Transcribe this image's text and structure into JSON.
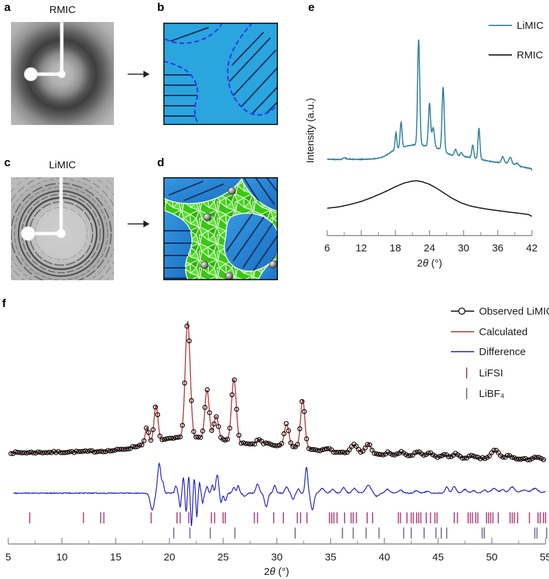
{
  "panels": {
    "a": {
      "label": "a",
      "title": "RMIC"
    },
    "b": {
      "label": "b"
    },
    "c": {
      "label": "c",
      "title": "LiMIC"
    },
    "d": {
      "label": "d"
    },
    "e": {
      "label": "e"
    },
    "f": {
      "label": "f"
    }
  },
  "colors": {
    "limic": "#2e80a0",
    "rmic": "#141414",
    "observed": "#000000",
    "calculated": "#b02828",
    "difference": "#1717bf",
    "lifsi": "#b04a80",
    "libf4": "#73739f",
    "axis": "#8c8c8c",
    "tick_label": "#1a1a1a",
    "panel_b_bg": "#2aa5de",
    "dashed_boundary": "#2d3bec",
    "hatch": "#15305e",
    "panel_d_blue": "#2484d4",
    "panel_d_green": "#3fd01a"
  },
  "chart_data": [
    {
      "id": "panel-e",
      "type": "line",
      "xlabel": "2θ (°)",
      "ylabel": "Intensity (a.u.)",
      "xlim": [
        6,
        42
      ],
      "xticks": [
        6,
        12,
        18,
        24,
        30,
        36,
        42
      ],
      "minor_ticks": [
        9,
        15,
        21,
        27,
        33,
        39
      ],
      "grid": false,
      "legend_position": "top-right",
      "series": [
        {
          "name": "LiMIC",
          "color_key": "limic",
          "legend_sample": "line",
          "baseline": [
            [
              6,
              0.018
            ],
            [
              8.5,
              0.016
            ],
            [
              9.0,
              0.032
            ],
            [
              9.5,
              0.02
            ],
            [
              11,
              0.016
            ],
            [
              13,
              0.018
            ],
            [
              14.5,
              0.022
            ],
            [
              15.5,
              0.032
            ],
            [
              16.5,
              0.052
            ],
            [
              17.2,
              0.075
            ],
            [
              18.0,
              0.1
            ],
            [
              19.0,
              0.115
            ],
            [
              20,
              0.125
            ],
            [
              21,
              0.135
            ],
            [
              22.5,
              0.135
            ],
            [
              23.5,
              0.125
            ],
            [
              25,
              0.11
            ],
            [
              26,
              0.1
            ],
            [
              27,
              0.07
            ],
            [
              27.8,
              0.052
            ],
            [
              29,
              0.045
            ],
            [
              30,
              0.04
            ],
            [
              31.5,
              0.03
            ],
            [
              33,
              0.018
            ],
            [
              34,
              0.006
            ],
            [
              35.5,
              -0.006
            ],
            [
              37,
              -0.012
            ],
            [
              38.5,
              -0.025
            ],
            [
              40,
              -0.042
            ],
            [
              41.5,
              -0.055
            ],
            [
              41.9,
              -0.06
            ],
            [
              42,
              -0.075
            ]
          ],
          "peaks": [
            [
              18.1,
              0.135,
              0.14
            ],
            [
              19.0,
              0.21,
              0.16
            ],
            [
              22.1,
              0.865,
              0.19
            ],
            [
              24.0,
              0.355,
              0.19
            ],
            [
              24.65,
              0.16,
              0.22
            ],
            [
              26.4,
              0.52,
              0.19
            ],
            [
              28.6,
              0.05,
              0.22
            ],
            [
              29.6,
              0.03,
              0.2
            ],
            [
              31.6,
              0.105,
              0.17
            ],
            [
              32.7,
              0.25,
              0.17
            ],
            [
              36.9,
              0.05,
              0.22
            ],
            [
              38.2,
              0.055,
              0.26
            ],
            [
              39.4,
              0.02,
              0.25
            ]
          ]
        },
        {
          "name": "RMIC",
          "color_key": "rmic",
          "legend_sample": "line",
          "baseline": [
            [
              6,
              0.095
            ],
            [
              8,
              0.105
            ],
            [
              10,
              0.125
            ],
            [
              12,
              0.15
            ],
            [
              14,
              0.185
            ],
            [
              16,
              0.225
            ],
            [
              18,
              0.27
            ],
            [
              19.5,
              0.3
            ],
            [
              20.8,
              0.315
            ],
            [
              21.7,
              0.32
            ],
            [
              22.8,
              0.31
            ],
            [
              24,
              0.29
            ],
            [
              25.2,
              0.26
            ],
            [
              26.5,
              0.22
            ],
            [
              28,
              0.175
            ],
            [
              29.5,
              0.14
            ],
            [
              31,
              0.115
            ],
            [
              32.5,
              0.1
            ],
            [
              34,
              0.088
            ],
            [
              36,
              0.075
            ],
            [
              38,
              0.063
            ],
            [
              40,
              0.052
            ],
            [
              41.5,
              0.042
            ],
            [
              42,
              0.028
            ]
          ],
          "peaks": []
        }
      ]
    },
    {
      "id": "panel-f",
      "type": "line+scatter",
      "xlabel": "2θ (°)",
      "xlim": [
        5,
        55
      ],
      "xticks": [
        5,
        10,
        15,
        20,
        25,
        30,
        35,
        40,
        45,
        50,
        55
      ],
      "minor_ticks": [
        7.5,
        12.5,
        17.5,
        22.5,
        27.5,
        32.5,
        37.5,
        42.5,
        47.5,
        52.5
      ],
      "grid": false,
      "legend_position": "top-right",
      "series": [
        {
          "name": "Observed LiMIC",
          "color_key": "observed",
          "legend_sample": "line-circle",
          "baseline": [
            [
              5,
              0.062
            ],
            [
              9,
              0.066
            ],
            [
              12,
              0.07
            ],
            [
              14.5,
              0.076
            ],
            [
              16,
              0.09
            ],
            [
              17.5,
              0.12
            ],
            [
              19,
              0.15
            ],
            [
              20.5,
              0.165
            ],
            [
              22,
              0.17
            ],
            [
              23.5,
              0.165
            ],
            [
              25,
              0.15
            ],
            [
              26.5,
              0.13
            ],
            [
              28,
              0.118
            ],
            [
              29.5,
              0.112
            ],
            [
              31,
              0.105
            ],
            [
              32.5,
              0.095
            ],
            [
              34,
              0.08
            ],
            [
              36,
              0.065
            ],
            [
              38,
              0.053
            ],
            [
              40,
              0.045
            ],
            [
              42,
              0.04
            ],
            [
              44,
              0.034
            ],
            [
              46,
              0.028
            ],
            [
              48,
              0.024
            ],
            [
              50,
              0.021
            ],
            [
              52,
              0.017
            ],
            [
              54,
              0.014
            ],
            [
              55,
              0.012
            ]
          ],
          "peaks": [
            [
              17.9,
              0.115,
              0.16
            ],
            [
              18.75,
              0.255,
              0.18
            ],
            [
              21.7,
              0.83,
              0.23
            ],
            [
              23.5,
              0.345,
              0.2
            ],
            [
              24.35,
              0.165,
              0.22
            ],
            [
              26.0,
              0.45,
              0.22
            ],
            [
              28.35,
              0.04,
              0.25
            ],
            [
              29.1,
              0.022,
              0.2
            ],
            [
              30.9,
              0.16,
              0.22
            ],
            [
              32.4,
              0.345,
              0.2
            ],
            [
              34.6,
              0.02,
              0.3
            ],
            [
              37.2,
              0.062,
              0.3
            ],
            [
              38.5,
              0.072,
              0.3
            ],
            [
              40.4,
              0.02,
              0.25
            ],
            [
              41.6,
              0.025,
              0.3
            ],
            [
              43.1,
              0.03,
              0.3
            ],
            [
              44.2,
              0.025,
              0.3
            ],
            [
              45.6,
              0.02,
              0.25
            ],
            [
              46.6,
              0.03,
              0.25
            ],
            [
              48.1,
              0.015,
              0.3
            ],
            [
              50.3,
              0.06,
              0.35
            ],
            [
              51.6,
              0.025,
              0.3
            ],
            [
              54.1,
              0.018,
              0.3
            ]
          ]
        },
        {
          "name": "Calculated",
          "color_key": "calculated",
          "legend_sample": "line",
          "same_model_as": 0
        },
        {
          "name": "Difference",
          "color_key": "difference",
          "legend_sample": "line",
          "features": [
            [
              18.4,
              -0.55,
              0.18
            ],
            [
              19.05,
              0.95,
              0.15
            ],
            [
              19.4,
              0.3,
              0.1
            ],
            [
              20.6,
              0.25,
              0.1
            ],
            [
              21.0,
              -0.45,
              0.09
            ],
            [
              21.3,
              0.5,
              0.09
            ],
            [
              21.55,
              -0.65,
              0.08
            ],
            [
              21.8,
              0.55,
              0.08
            ],
            [
              22.05,
              -1.05,
              0.09
            ],
            [
              22.3,
              0.5,
              0.08
            ],
            [
              22.55,
              -0.75,
              0.08
            ],
            [
              22.8,
              0.35,
              0.08
            ],
            [
              23.1,
              -0.3,
              0.09
            ],
            [
              23.5,
              0.2,
              0.1
            ],
            [
              24.0,
              0.25,
              0.1
            ],
            [
              24.45,
              0.6,
              0.12
            ],
            [
              24.8,
              -0.3,
              0.1
            ],
            [
              25.2,
              -0.25,
              0.12
            ],
            [
              26.0,
              0.2,
              0.12
            ],
            [
              26.4,
              0.25,
              0.1
            ],
            [
              27.0,
              -0.1,
              0.15
            ],
            [
              28.2,
              0.3,
              0.15
            ],
            [
              29.0,
              -0.45,
              0.15
            ],
            [
              29.8,
              0.25,
              0.12
            ],
            [
              30.9,
              0.2,
              0.15
            ],
            [
              31.5,
              -0.2,
              0.12
            ],
            [
              32.0,
              0.15,
              0.1
            ],
            [
              32.75,
              0.85,
              0.12
            ],
            [
              33.3,
              -0.55,
              0.15
            ],
            [
              34.2,
              0.15,
              0.2
            ],
            [
              35.2,
              0.12,
              0.2
            ],
            [
              36.2,
              0.18,
              0.18
            ],
            [
              37.2,
              0.15,
              0.2
            ],
            [
              38.5,
              0.25,
              0.25
            ],
            [
              39.3,
              -0.1,
              0.2
            ],
            [
              40.3,
              0.12,
              0.2
            ],
            [
              41.5,
              0.1,
              0.2
            ],
            [
              43.0,
              0.08,
              0.2
            ],
            [
              44.0,
              0.06,
              0.2
            ],
            [
              45.8,
              0.2,
              0.15
            ],
            [
              46.5,
              0.22,
              0.18
            ],
            [
              47.5,
              0.12,
              0.2
            ],
            [
              48.3,
              0.08,
              0.2
            ],
            [
              49.3,
              0.1,
              0.2
            ],
            [
              50.2,
              0.15,
              0.25
            ],
            [
              51.0,
              0.12,
              0.2
            ],
            [
              51.9,
              0.2,
              0.25
            ],
            [
              53.0,
              0.1,
              0.3
            ],
            [
              54.0,
              0.15,
              0.3
            ],
            [
              55,
              0.05,
              0.2
            ]
          ]
        },
        {
          "name": "LiFSI",
          "color_key": "lifsi",
          "legend_sample": "vtick",
          "ticks": [
            7.0,
            12.0,
            13.6,
            13.9,
            18.3,
            20.7,
            21.0,
            21.8,
            23.9,
            24.2,
            25.0,
            25.2,
            27.9,
            28.2,
            29.7,
            30.6,
            31.9,
            32.2,
            32.8,
            34.9,
            35.1,
            35.3,
            35.6,
            36.3,
            36.9,
            37.1,
            37.4,
            38.4,
            38.9,
            41.3,
            41.5,
            42.1,
            42.5,
            42.7,
            43.0,
            43.2,
            43.4,
            43.9,
            44.3,
            44.7,
            44.9,
            46.5,
            46.8,
            47.8,
            48.0,
            48.2,
            48.5,
            48.7,
            49.5,
            49.7,
            49.9,
            50.1,
            50.6,
            51.7,
            51.9,
            52.1,
            52.4,
            53.5,
            54.3,
            54.5,
            54.8,
            55.0
          ]
        },
        {
          "name": "LiBF₄",
          "color_key": "libf4",
          "legend_sample": "vtick",
          "ticks": [
            20.4,
            21.9,
            23.8,
            26.1,
            31.7,
            36.1,
            37.1,
            38.3,
            39.5,
            41.8,
            42.5,
            43.7,
            44.8,
            45.3,
            45.8,
            49.1,
            49.3,
            54.0,
            54.2,
            55.1
          ]
        }
      ]
    }
  ]
}
